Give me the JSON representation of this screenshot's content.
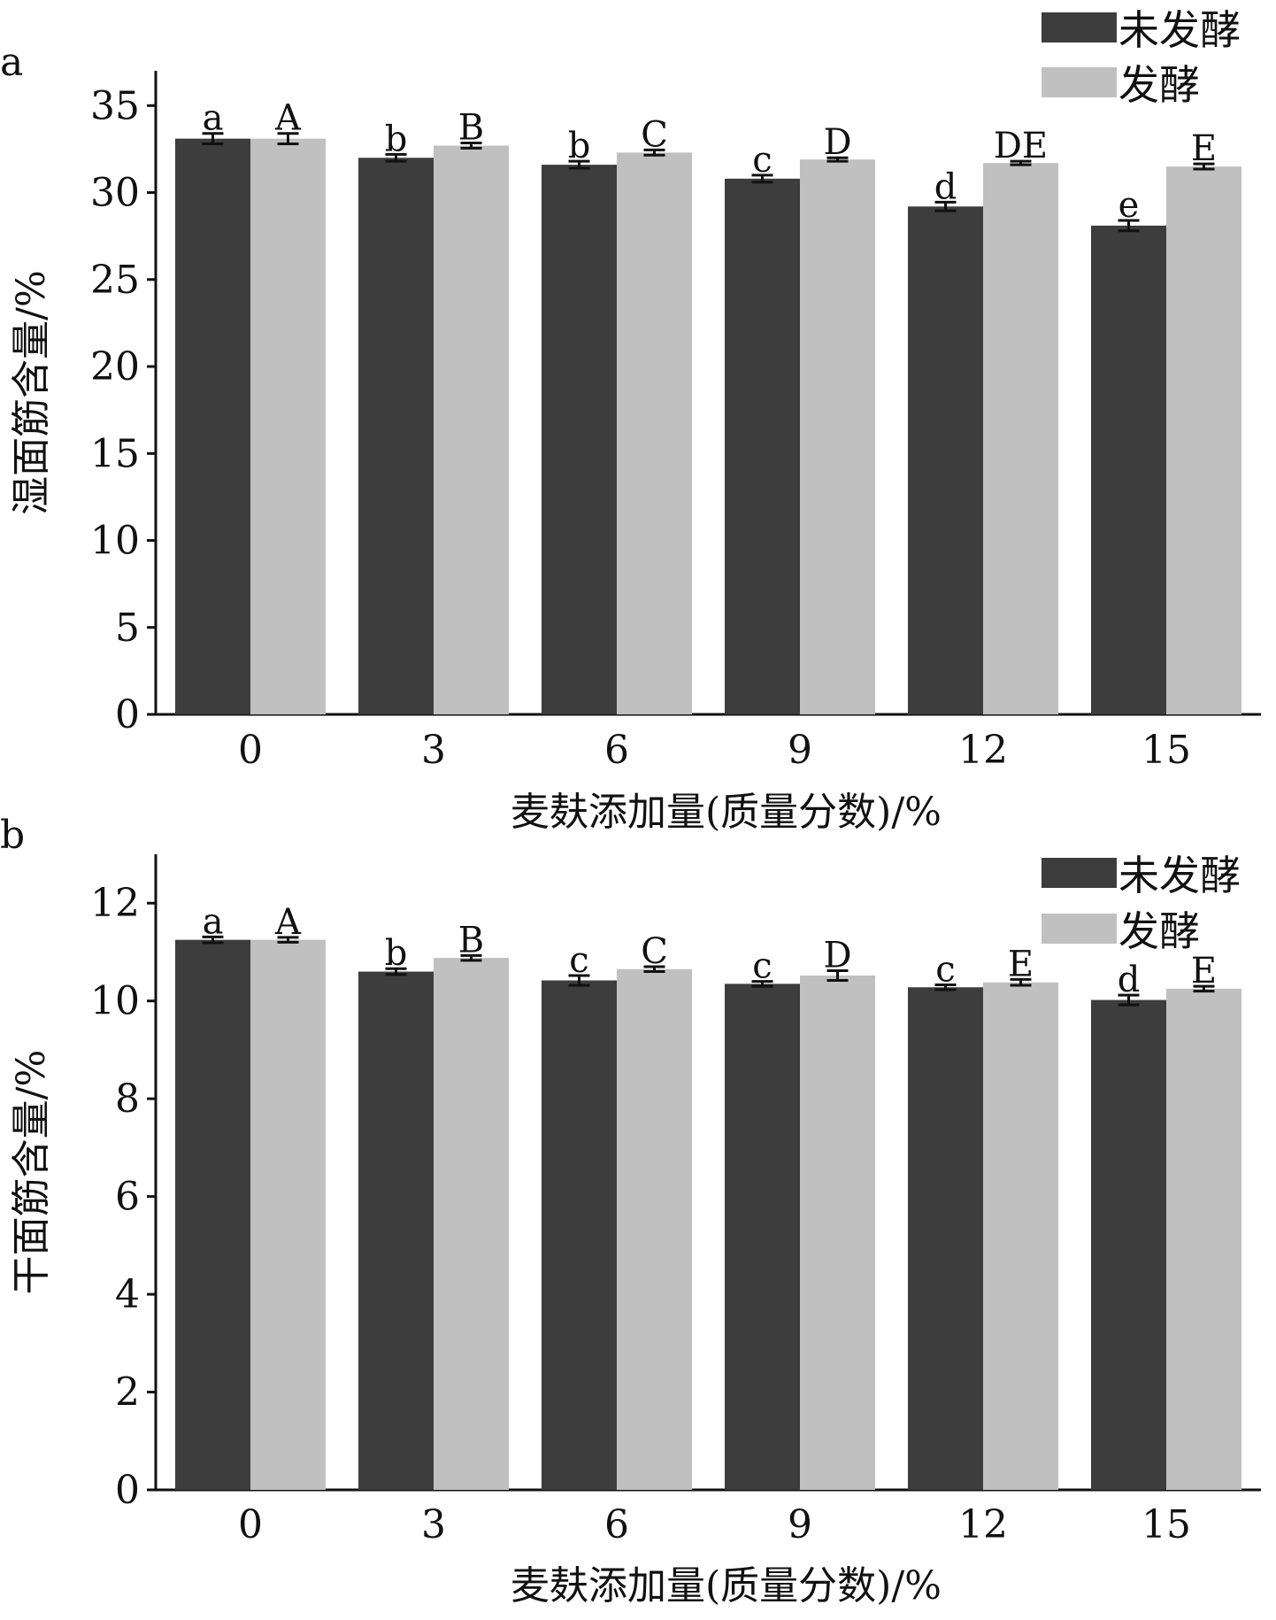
{
  "chart_data": [
    {
      "panel": "a",
      "type": "bar",
      "categories": [
        "0",
        "3",
        "6",
        "9",
        "12",
        "15"
      ],
      "xlabel": "麦麸添加量(质量分数)/%",
      "ylabel": "湿面筋含量/%",
      "ylim": [
        0,
        37
      ],
      "yticks": [
        0,
        5,
        10,
        15,
        20,
        25,
        30,
        35
      ],
      "grid": false,
      "legend": "top-right",
      "series": [
        {
          "name": "未发酵",
          "color": "#3d3d3d",
          "values": [
            33.1,
            32.0,
            31.6,
            30.8,
            29.2,
            28.1
          ],
          "errors": [
            0.3,
            0.2,
            0.2,
            0.2,
            0.25,
            0.3
          ],
          "labels": [
            "a",
            "b",
            "b",
            "c",
            "d",
            "e"
          ]
        },
        {
          "name": "发酵",
          "color": "#c0c0c0",
          "values": [
            33.1,
            32.7,
            32.3,
            31.9,
            31.7,
            31.5
          ],
          "errors": [
            0.3,
            0.15,
            0.15,
            0.1,
            0.1,
            0.15
          ],
          "labels": [
            "A",
            "B",
            "C",
            "D",
            "DE",
            "E"
          ]
        }
      ]
    },
    {
      "panel": "b",
      "type": "bar",
      "categories": [
        "0",
        "3",
        "6",
        "9",
        "12",
        "15"
      ],
      "xlabel": "麦麸添加量(质量分数)/%",
      "ylabel": "干面筋含量/%",
      "ylim": [
        0,
        13
      ],
      "yticks": [
        0,
        2,
        4,
        6,
        8,
        10,
        12
      ],
      "grid": false,
      "legend": "top-right",
      "series": [
        {
          "name": "未发酵",
          "color": "#3d3d3d",
          "values": [
            11.25,
            10.6,
            10.42,
            10.35,
            10.28,
            10.02
          ],
          "errors": [
            0.06,
            0.06,
            0.1,
            0.05,
            0.05,
            0.1
          ],
          "labels": [
            "a",
            "b",
            "c",
            "c",
            "c",
            "d"
          ]
        },
        {
          "name": "发酵",
          "color": "#c0c0c0",
          "values": [
            11.25,
            10.88,
            10.65,
            10.52,
            10.38,
            10.25
          ],
          "errors": [
            0.05,
            0.05,
            0.05,
            0.1,
            0.06,
            0.05
          ],
          "labels": [
            "A",
            "B",
            "C",
            "D",
            "E",
            "E"
          ]
        }
      ]
    }
  ]
}
